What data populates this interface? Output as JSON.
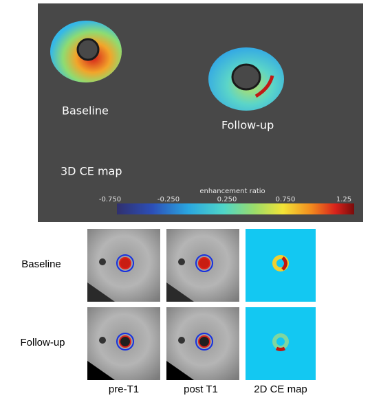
{
  "panel_3d": {
    "labels": [
      "Baseline",
      "Follow-up",
      "3D CE map"
    ],
    "colorbar": {
      "title": "enhancement ratio",
      "ticks": [
        "-0.750",
        "-0.250",
        "0.250",
        "0.750",
        "1.25"
      ]
    }
  },
  "grid": {
    "row_labels": [
      "Baseline",
      "Follow-up"
    ],
    "column_labels": [
      "pre-T1",
      "post T1",
      "2D CE map"
    ]
  }
}
